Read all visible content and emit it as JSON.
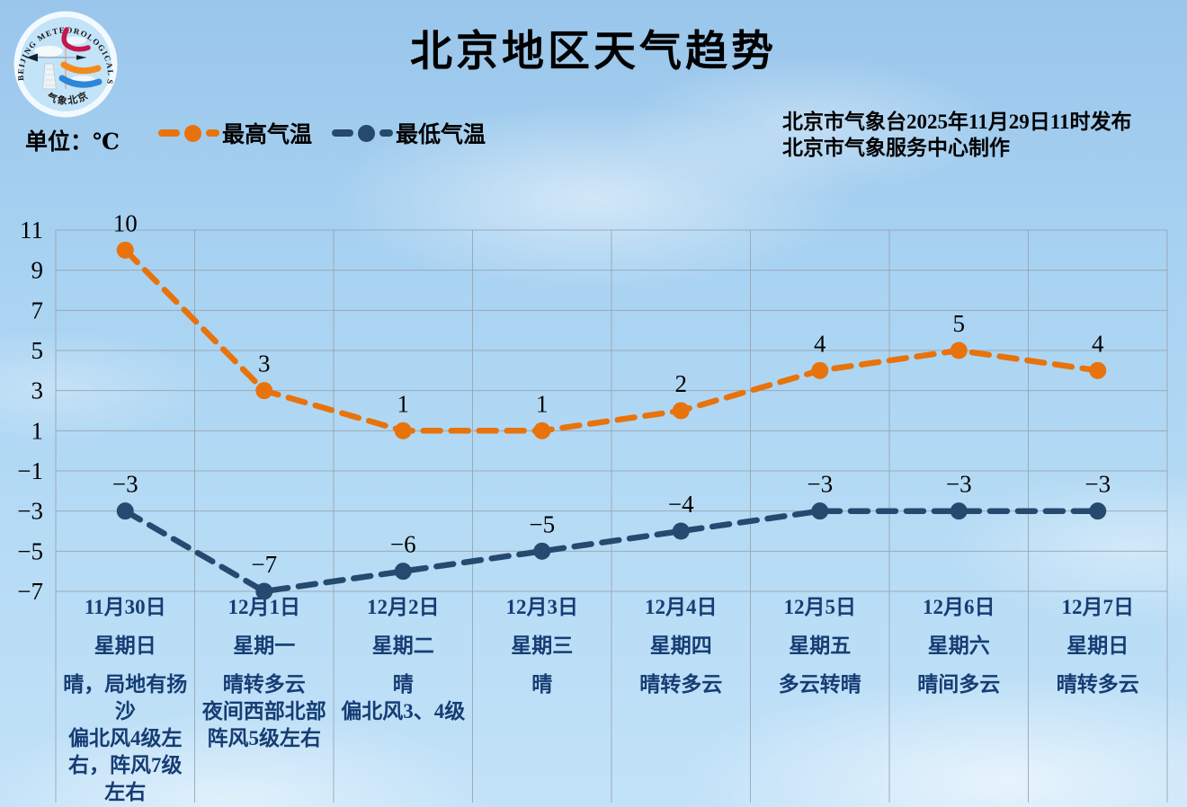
{
  "header": {
    "title": "北京地区天气趋势",
    "unit_label": "单位：℃",
    "publish_line1": "北京市气象台2025年11月29日11时发布",
    "publish_line2": "北京市气象服务中心制作",
    "logo": {
      "arc_text": "BEIJING METEOROLOGICAL SERVICE",
      "bottom_text": "气象北京"
    }
  },
  "chart_data": {
    "type": "line",
    "title": "北京地区天气趋势",
    "unit": "℃",
    "line_style": "dashed",
    "grid": true,
    "legend_position": "top-left",
    "ylim": [
      -7,
      11
    ],
    "y_ticks": [
      11,
      9,
      7,
      5,
      3,
      1,
      -1,
      -3,
      -5,
      -7
    ],
    "categories": [
      "11月30日",
      "12月1日",
      "12月2日",
      "12月3日",
      "12月4日",
      "12月5日",
      "12月6日",
      "12月7日"
    ],
    "weekdays": [
      "星期日",
      "星期一",
      "星期二",
      "星期三",
      "星期四",
      "星期五",
      "星期六",
      "星期日"
    ],
    "weather": [
      "晴，局地有扬沙",
      "晴转多云",
      "晴",
      "晴",
      "晴转多云",
      "多云转晴",
      "晴间多云",
      "晴转多云"
    ],
    "wind": [
      "偏北风4级左右，阵风7级左右",
      "夜间西部北部阵风5级左右",
      "偏北风3、4级",
      "",
      "",
      "",
      "",
      ""
    ],
    "series": [
      {
        "name": "最高气温",
        "color": "#E8730C",
        "values": [
          10,
          3,
          1,
          1,
          2,
          4,
          5,
          4
        ]
      },
      {
        "name": "最低气温",
        "color": "#26496F",
        "values": [
          -3,
          -7,
          -6,
          -5,
          -4,
          -3,
          -3,
          -3
        ]
      }
    ],
    "colors": {
      "grid": "#98A2AC",
      "value_label": "#000000",
      "table_text": "#163D74"
    }
  }
}
